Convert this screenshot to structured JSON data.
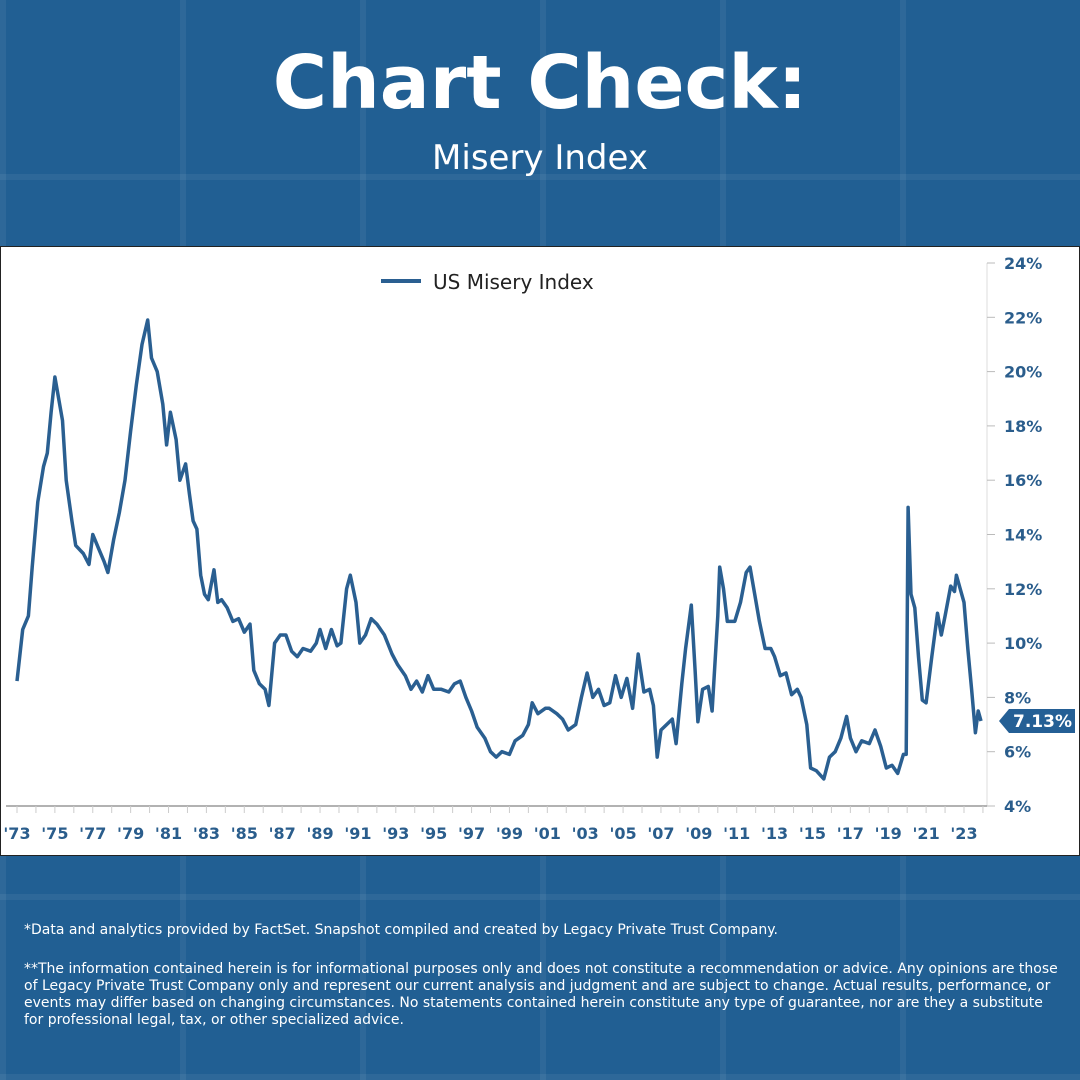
{
  "header": {
    "title": "Chart Check:",
    "subtitle": "Misery Index"
  },
  "colors": {
    "background": "#215f93",
    "series": "#2a5f91",
    "callout": "#245f95"
  },
  "chart_data": {
    "type": "line",
    "title": "",
    "xlabel": "",
    "ylabel": "",
    "legend": "top-center",
    "grid": false,
    "ylim": [
      4,
      24
    ],
    "y_ticks": [
      "4%",
      "6%",
      "8%",
      "10%",
      "12%",
      "14%",
      "16%",
      "18%",
      "20%",
      "22%",
      "24%"
    ],
    "y_axis_side": "right",
    "x_ticks": [
      "'73",
      "'75",
      "'77",
      "'79",
      "'81",
      "'83",
      "'85",
      "'87",
      "'89",
      "'91",
      "'93",
      "'95",
      "'97",
      "'99",
      "'01",
      "'03",
      "'05",
      "'07",
      "'09",
      "'11",
      "'13",
      "'15",
      "'17",
      "'19",
      "'21",
      "'23"
    ],
    "last_value_label": "7.13%",
    "series": [
      {
        "name": "US Misery Index",
        "points": [
          [
            1973.0,
            8.6
          ],
          [
            1973.3,
            10.5
          ],
          [
            1973.6,
            11.0
          ],
          [
            1973.8,
            12.8
          ],
          [
            1974.1,
            15.2
          ],
          [
            1974.4,
            16.5
          ],
          [
            1974.6,
            17.0
          ],
          [
            1974.8,
            18.5
          ],
          [
            1975.0,
            19.8
          ],
          [
            1975.2,
            19.0
          ],
          [
            1975.4,
            18.2
          ],
          [
            1975.6,
            16.0
          ],
          [
            1975.9,
            14.5
          ],
          [
            1976.1,
            13.6
          ],
          [
            1976.5,
            13.3
          ],
          [
            1976.8,
            12.9
          ],
          [
            1977.0,
            14.0
          ],
          [
            1977.3,
            13.5
          ],
          [
            1977.6,
            13.0
          ],
          [
            1977.8,
            12.6
          ],
          [
            1978.1,
            13.8
          ],
          [
            1978.4,
            14.8
          ],
          [
            1978.7,
            16.0
          ],
          [
            1979.0,
            17.8
          ],
          [
            1979.3,
            19.5
          ],
          [
            1979.6,
            21.0
          ],
          [
            1979.9,
            21.9
          ],
          [
            1980.1,
            20.5
          ],
          [
            1980.4,
            20.0
          ],
          [
            1980.7,
            18.8
          ],
          [
            1980.9,
            17.3
          ],
          [
            1981.1,
            18.5
          ],
          [
            1981.4,
            17.5
          ],
          [
            1981.6,
            16.0
          ],
          [
            1981.9,
            16.6
          ],
          [
            1982.1,
            15.5
          ],
          [
            1982.3,
            14.5
          ],
          [
            1982.5,
            14.2
          ],
          [
            1982.7,
            12.5
          ],
          [
            1982.9,
            11.8
          ],
          [
            1983.1,
            11.6
          ],
          [
            1983.4,
            12.7
          ],
          [
            1983.6,
            11.5
          ],
          [
            1983.8,
            11.6
          ],
          [
            1984.1,
            11.3
          ],
          [
            1984.4,
            10.8
          ],
          [
            1984.7,
            10.9
          ],
          [
            1985.0,
            10.4
          ],
          [
            1985.3,
            10.7
          ],
          [
            1985.5,
            9.0
          ],
          [
            1985.8,
            8.5
          ],
          [
            1986.1,
            8.3
          ],
          [
            1986.3,
            7.7
          ],
          [
            1986.6,
            10.0
          ],
          [
            1986.9,
            10.3
          ],
          [
            1987.2,
            10.3
          ],
          [
            1987.5,
            9.7
          ],
          [
            1987.8,
            9.5
          ],
          [
            1988.1,
            9.8
          ],
          [
            1988.5,
            9.7
          ],
          [
            1988.8,
            10.0
          ],
          [
            1989.0,
            10.5
          ],
          [
            1989.3,
            9.8
          ],
          [
            1989.6,
            10.5
          ],
          [
            1989.9,
            9.9
          ],
          [
            1990.1,
            10.0
          ],
          [
            1990.4,
            12.0
          ],
          [
            1990.6,
            12.5
          ],
          [
            1990.9,
            11.5
          ],
          [
            1991.1,
            10.0
          ],
          [
            1991.4,
            10.3
          ],
          [
            1991.7,
            10.9
          ],
          [
            1992.0,
            10.7
          ],
          [
            1992.4,
            10.3
          ],
          [
            1992.8,
            9.6
          ],
          [
            1993.1,
            9.2
          ],
          [
            1993.5,
            8.8
          ],
          [
            1993.8,
            8.3
          ],
          [
            1994.1,
            8.6
          ],
          [
            1994.4,
            8.2
          ],
          [
            1994.7,
            8.8
          ],
          [
            1995.0,
            8.3
          ],
          [
            1995.4,
            8.3
          ],
          [
            1995.8,
            8.2
          ],
          [
            1996.1,
            8.5
          ],
          [
            1996.4,
            8.6
          ],
          [
            1996.7,
            8.0
          ],
          [
            1997.0,
            7.5
          ],
          [
            1997.3,
            6.9
          ],
          [
            1997.7,
            6.5
          ],
          [
            1998.0,
            6.0
          ],
          [
            1998.3,
            5.8
          ],
          [
            1998.6,
            6.0
          ],
          [
            1999.0,
            5.9
          ],
          [
            1999.3,
            6.4
          ],
          [
            1999.7,
            6.6
          ],
          [
            2000.0,
            7.0
          ],
          [
            2000.2,
            7.8
          ],
          [
            2000.5,
            7.4
          ],
          [
            2000.9,
            7.6
          ],
          [
            2001.1,
            7.6
          ],
          [
            2001.5,
            7.4
          ],
          [
            2001.8,
            7.2
          ],
          [
            2002.1,
            6.8
          ],
          [
            2002.5,
            7.0
          ],
          [
            2002.8,
            8.0
          ],
          [
            2003.1,
            8.9
          ],
          [
            2003.4,
            8.0
          ],
          [
            2003.7,
            8.3
          ],
          [
            2004.0,
            7.7
          ],
          [
            2004.3,
            7.8
          ],
          [
            2004.6,
            8.8
          ],
          [
            2004.9,
            8.0
          ],
          [
            2005.2,
            8.7
          ],
          [
            2005.5,
            7.6
          ],
          [
            2005.8,
            9.6
          ],
          [
            2006.1,
            8.2
          ],
          [
            2006.4,
            8.3
          ],
          [
            2006.6,
            7.7
          ],
          [
            2006.8,
            5.8
          ],
          [
            2007.0,
            6.8
          ],
          [
            2007.3,
            7.0
          ],
          [
            2007.6,
            7.2
          ],
          [
            2007.8,
            6.3
          ],
          [
            2008.1,
            8.5
          ],
          [
            2008.3,
            9.8
          ],
          [
            2008.6,
            11.4
          ],
          [
            2008.8,
            9.0
          ],
          [
            2008.95,
            7.1
          ],
          [
            2009.2,
            8.3
          ],
          [
            2009.5,
            8.4
          ],
          [
            2009.7,
            7.5
          ],
          [
            2010.0,
            11.0
          ],
          [
            2010.1,
            12.8
          ],
          [
            2010.3,
            12.0
          ],
          [
            2010.5,
            10.8
          ],
          [
            2010.9,
            10.8
          ],
          [
            2011.2,
            11.5
          ],
          [
            2011.5,
            12.6
          ],
          [
            2011.7,
            12.8
          ],
          [
            2011.95,
            11.8
          ],
          [
            2012.2,
            10.8
          ],
          [
            2012.5,
            9.8
          ],
          [
            2012.8,
            9.8
          ],
          [
            2013.0,
            9.5
          ],
          [
            2013.3,
            8.8
          ],
          [
            2013.6,
            8.9
          ],
          [
            2013.9,
            8.1
          ],
          [
            2014.2,
            8.3
          ],
          [
            2014.4,
            8.0
          ],
          [
            2014.7,
            7.0
          ],
          [
            2014.9,
            5.4
          ],
          [
            2015.2,
            5.3
          ],
          [
            2015.6,
            5.0
          ],
          [
            2015.9,
            5.8
          ],
          [
            2016.2,
            6.0
          ],
          [
            2016.5,
            6.5
          ],
          [
            2016.8,
            7.3
          ],
          [
            2017.0,
            6.5
          ],
          [
            2017.3,
            6.0
          ],
          [
            2017.6,
            6.4
          ],
          [
            2018.0,
            6.3
          ],
          [
            2018.3,
            6.8
          ],
          [
            2018.6,
            6.2
          ],
          [
            2018.9,
            5.4
          ],
          [
            2019.2,
            5.5
          ],
          [
            2019.5,
            5.2
          ],
          [
            2019.8,
            5.9
          ],
          [
            2019.95,
            5.9
          ],
          [
            2020.05,
            15.0
          ],
          [
            2020.2,
            11.8
          ],
          [
            2020.4,
            11.3
          ],
          [
            2020.6,
            9.5
          ],
          [
            2020.8,
            7.9
          ],
          [
            2021.0,
            7.8
          ],
          [
            2021.3,
            9.5
          ],
          [
            2021.6,
            11.1
          ],
          [
            2021.8,
            10.3
          ],
          [
            2022.0,
            11.0
          ],
          [
            2022.3,
            12.1
          ],
          [
            2022.5,
            11.9
          ],
          [
            2022.6,
            12.5
          ],
          [
            2022.8,
            12.0
          ],
          [
            2023.0,
            11.5
          ],
          [
            2023.2,
            9.8
          ],
          [
            2023.4,
            8.3
          ],
          [
            2023.6,
            6.7
          ],
          [
            2023.75,
            7.5
          ],
          [
            2023.9,
            7.13
          ]
        ]
      }
    ]
  },
  "footer": {
    "note1": "*Data and analytics provided by FactSet. Snapshot compiled and created by Legacy Private Trust Company.",
    "note2": "**The information contained herein is for informational purposes only and does not constitute a recommendation or advice. Any opinions are those of Legacy Private Trust Company only and represent our current analysis and judgment and are subject to change. Actual results, performance, or events may differ based on changing circumstances. No statements contained herein constitute any type of guarantee, nor are they a substitute for professional legal, tax, or other specialized advice."
  }
}
